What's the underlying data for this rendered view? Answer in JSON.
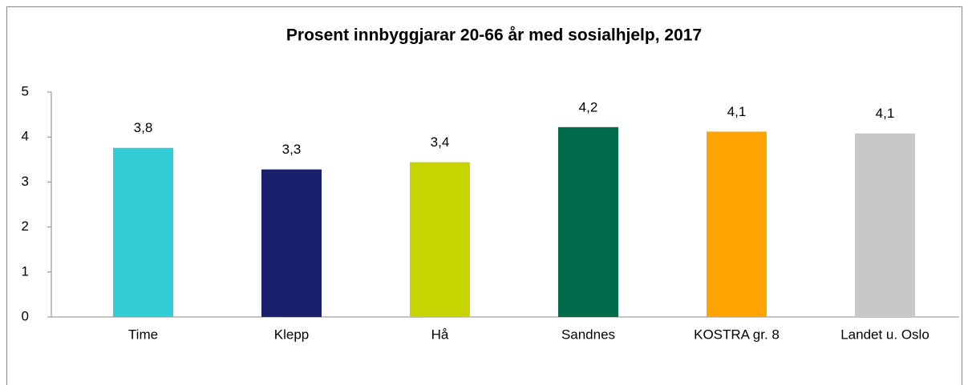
{
  "chart_data": {
    "type": "bar",
    "title": "Prosent innbyggjarar 20-66 år med sosialhjelp, 2017",
    "categories": [
      "Time",
      "Klepp",
      "Hå",
      "Sandnes",
      "KOSTRA gr. 8",
      "Landet u. Oslo"
    ],
    "values": [
      3.76,
      3.28,
      3.44,
      4.22,
      4.12,
      4.08
    ],
    "value_labels": [
      "3,8",
      "3,3",
      "3,4",
      "4,2",
      "4,1",
      "4,1"
    ],
    "colors": [
      "#33ccd6",
      "#1a206b",
      "#c8d400",
      "#006a4a",
      "#ffa300",
      "#c8c8c6"
    ],
    "ylim": [
      0,
      5
    ],
    "yticks": [
      0,
      1,
      2,
      3,
      4,
      5
    ],
    "grid": false
  }
}
